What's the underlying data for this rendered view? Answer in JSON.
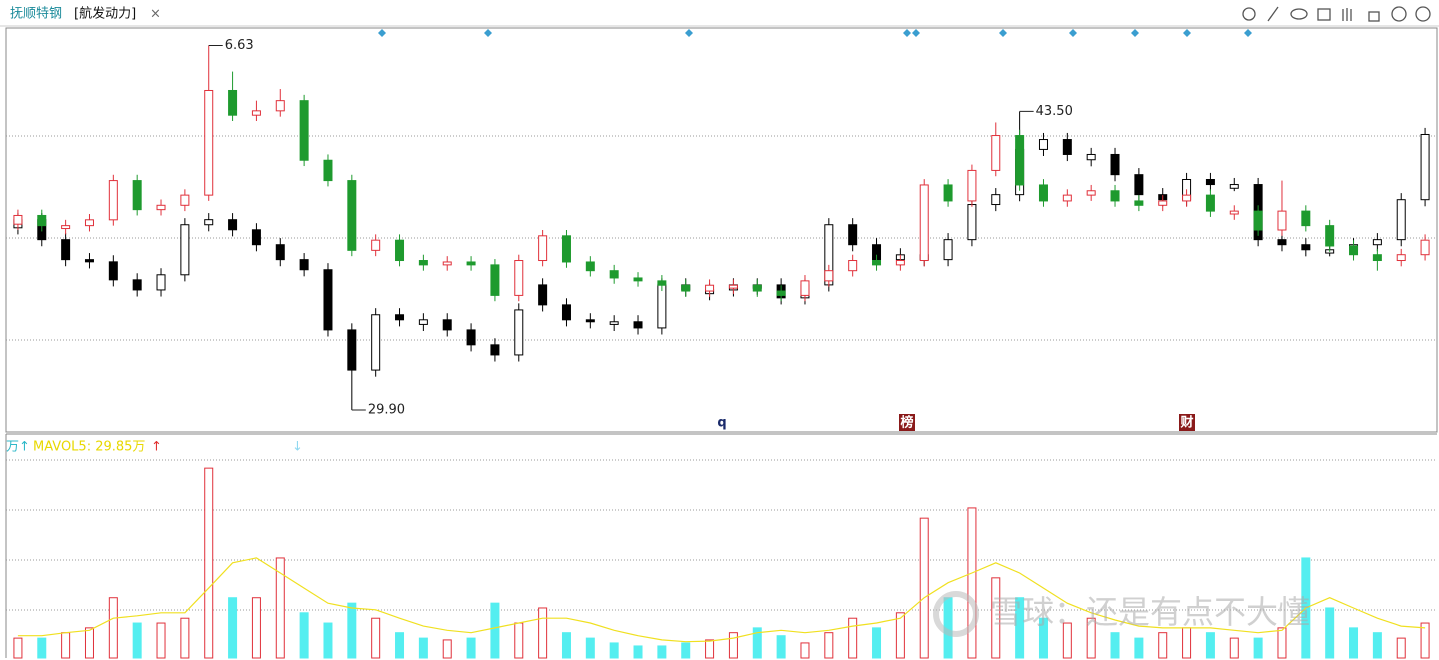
{
  "tab": {
    "stock": "抚顺特钢",
    "overlay": "[航发动力]",
    "close": "×"
  },
  "chart_data": {
    "type": "candlestick",
    "series": [
      {
        "name": "抚顺特钢",
        "up_color": "#e0303a",
        "down_color": "#1e9a2e",
        "hollow_up": true,
        "ylim": [
          3.97,
          6.75
        ],
        "max_label": "6.63",
        "ohlc": [
          [
            5.4,
            5.5,
            5.36,
            5.46
          ],
          [
            5.46,
            5.5,
            5.35,
            5.39
          ],
          [
            5.37,
            5.43,
            5.33,
            5.39
          ],
          [
            5.39,
            5.47,
            5.35,
            5.43
          ],
          [
            5.43,
            5.74,
            5.39,
            5.7
          ],
          [
            5.7,
            5.74,
            5.46,
            5.5
          ],
          [
            5.5,
            5.57,
            5.46,
            5.53
          ],
          [
            5.53,
            5.64,
            5.49,
            5.6
          ],
          [
            5.6,
            6.63,
            5.56,
            6.32
          ],
          [
            6.32,
            6.45,
            6.11,
            6.15
          ],
          [
            6.15,
            6.25,
            6.11,
            6.18
          ],
          [
            6.18,
            6.33,
            6.14,
            6.25
          ],
          [
            6.25,
            6.29,
            5.8,
            5.84
          ],
          [
            5.84,
            5.88,
            5.66,
            5.7
          ],
          [
            5.7,
            5.74,
            5.18,
            5.22
          ],
          [
            5.22,
            5.33,
            5.18,
            5.29
          ],
          [
            5.29,
            5.33,
            5.11,
            5.15
          ],
          [
            5.15,
            5.19,
            5.08,
            5.12
          ],
          [
            5.12,
            5.18,
            5.08,
            5.14
          ],
          [
            5.14,
            5.18,
            5.08,
            5.12
          ],
          [
            5.12,
            5.16,
            4.87,
            4.91
          ],
          [
            4.91,
            5.19,
            4.87,
            5.15
          ],
          [
            5.15,
            5.36,
            5.11,
            5.32
          ],
          [
            5.32,
            5.36,
            5.1,
            5.14
          ],
          [
            5.14,
            5.18,
            5.04,
            5.08
          ],
          [
            5.08,
            5.12,
            4.99,
            5.03
          ],
          [
            5.03,
            5.07,
            4.97,
            5.01
          ],
          [
            5.01,
            5.05,
            4.94,
            4.98
          ],
          [
            4.98,
            5.02,
            4.9,
            4.94
          ],
          [
            4.94,
            5.02,
            4.9,
            4.98
          ],
          [
            4.96,
            5.02,
            4.92,
            4.98
          ],
          [
            4.98,
            5.02,
            4.9,
            4.94
          ],
          [
            4.94,
            4.98,
            4.87,
            4.91
          ],
          [
            4.91,
            5.05,
            4.87,
            5.01
          ],
          [
            5.01,
            5.12,
            4.97,
            5.08
          ],
          [
            5.08,
            5.19,
            5.04,
            5.15
          ],
          [
            5.15,
            5.19,
            5.08,
            5.12
          ],
          [
            5.12,
            5.19,
            5.08,
            5.15
          ],
          [
            5.15,
            5.71,
            5.11,
            5.67
          ],
          [
            5.67,
            5.71,
            5.52,
            5.56
          ],
          [
            5.56,
            5.81,
            5.52,
            5.77
          ],
          [
            5.77,
            6.1,
            5.73,
            6.01
          ],
          [
            6.01,
            6.05,
            5.63,
            5.67
          ],
          [
            5.67,
            5.71,
            5.52,
            5.56
          ],
          [
            5.56,
            5.64,
            5.52,
            5.6
          ],
          [
            5.6,
            5.67,
            5.56,
            5.63
          ],
          [
            5.63,
            5.67,
            5.52,
            5.56
          ],
          [
            5.56,
            5.6,
            5.49,
            5.53
          ],
          [
            5.53,
            5.6,
            5.49,
            5.56
          ],
          [
            5.56,
            5.64,
            5.52,
            5.6
          ],
          [
            5.6,
            5.64,
            5.45,
            5.49
          ],
          [
            5.47,
            5.53,
            5.43,
            5.49
          ],
          [
            5.49,
            5.53,
            5.32,
            5.36
          ],
          [
            5.36,
            5.7,
            5.32,
            5.49
          ],
          [
            5.49,
            5.53,
            5.35,
            5.39
          ],
          [
            5.39,
            5.43,
            5.21,
            5.25
          ],
          [
            5.25,
            5.29,
            5.15,
            5.19
          ],
          [
            5.19,
            5.23,
            5.08,
            5.15
          ],
          [
            5.15,
            5.23,
            5.11,
            5.19
          ],
          [
            5.19,
            5.33,
            5.15,
            5.29
          ]
        ]
      },
      {
        "name": "航发动力",
        "up_color": "#000000",
        "down_color": "#000000",
        "hollow_up": true,
        "ylim": [
          28.9,
          47.3
        ],
        "max_label": "43.50",
        "min_label": "29.90",
        "ohlc": [
          [
            38.2,
            38.87,
            37.9,
            38.57
          ],
          [
            38.57,
            38.87,
            37.36,
            37.66
          ],
          [
            37.66,
            37.96,
            36.45,
            36.75
          ],
          [
            36.75,
            37.05,
            36.35,
            36.65
          ],
          [
            36.65,
            36.95,
            35.53,
            35.83
          ],
          [
            35.83,
            36.13,
            35.07,
            35.37
          ],
          [
            35.37,
            36.36,
            35.07,
            36.06
          ],
          [
            36.06,
            38.64,
            35.76,
            38.34
          ],
          [
            38.34,
            38.87,
            38.04,
            38.57
          ],
          [
            38.57,
            38.87,
            37.81,
            38.11
          ],
          [
            38.11,
            38.41,
            37.13,
            37.43
          ],
          [
            37.43,
            37.73,
            36.45,
            36.75
          ],
          [
            36.75,
            37.05,
            35.99,
            36.29
          ],
          [
            36.29,
            36.59,
            33.25,
            33.55
          ],
          [
            33.55,
            33.85,
            29.9,
            31.72
          ],
          [
            31.72,
            34.54,
            31.42,
            34.24
          ],
          [
            34.24,
            34.54,
            33.71,
            34.01
          ],
          [
            33.8,
            34.31,
            33.5,
            34.01
          ],
          [
            34.01,
            34.31,
            33.25,
            33.55
          ],
          [
            33.55,
            33.85,
            32.57,
            32.87
          ],
          [
            32.87,
            33.17,
            32.11,
            32.41
          ],
          [
            32.41,
            34.76,
            32.11,
            34.46
          ],
          [
            35.6,
            35.9,
            34.39,
            34.69
          ],
          [
            34.69,
            34.99,
            33.71,
            34.01
          ],
          [
            34.01,
            34.31,
            33.62,
            33.92
          ],
          [
            33.8,
            34.22,
            33.5,
            33.92
          ],
          [
            33.92,
            34.22,
            33.34,
            33.64
          ],
          [
            33.64,
            35.9,
            33.34,
            35.6
          ],
          [
            35.6,
            35.9,
            35.07,
            35.37
          ],
          [
            35.2,
            35.67,
            34.9,
            35.37
          ],
          [
            35.37,
            35.9,
            35.07,
            35.6
          ],
          [
            35.45,
            35.9,
            35.15,
            35.6
          ],
          [
            35.6,
            35.9,
            34.71,
            35.01
          ],
          [
            35.01,
            35.9,
            34.71,
            35.6
          ],
          [
            35.6,
            38.64,
            35.3,
            38.34
          ],
          [
            38.34,
            38.64,
            37.13,
            37.43
          ],
          [
            37.43,
            37.73,
            36.45,
            36.75
          ],
          [
            36.75,
            37.27,
            36.45,
            36.97
          ],
          [
            36.97,
            37.27,
            36.45,
            36.75
          ],
          [
            36.75,
            37.96,
            36.45,
            37.66
          ],
          [
            37.66,
            39.56,
            37.36,
            39.26
          ],
          [
            39.26,
            40.01,
            38.96,
            39.71
          ],
          [
            39.71,
            43.5,
            39.41,
            41.77
          ],
          [
            41.77,
            42.52,
            41.47,
            42.22
          ],
          [
            42.22,
            42.52,
            41.24,
            41.54
          ],
          [
            41.3,
            41.84,
            41.0,
            41.54
          ],
          [
            41.54,
            41.84,
            40.32,
            40.62
          ],
          [
            40.62,
            40.92,
            39.41,
            39.71
          ],
          [
            39.71,
            40.01,
            39.18,
            39.48
          ],
          [
            39.48,
            40.7,
            39.18,
            40.4
          ],
          [
            40.4,
            40.7,
            39.87,
            40.17
          ],
          [
            40.0,
            40.47,
            39.87,
            40.17
          ],
          [
            40.17,
            40.47,
            37.36,
            37.66
          ],
          [
            37.66,
            37.96,
            37.13,
            37.43
          ],
          [
            37.43,
            37.73,
            36.9,
            37.2
          ],
          [
            37.05,
            37.5,
            36.9,
            37.2
          ],
          [
            37.2,
            37.73,
            36.9,
            37.43
          ],
          [
            37.43,
            37.96,
            37.13,
            37.66
          ],
          [
            37.66,
            39.78,
            37.36,
            39.48
          ],
          [
            39.48,
            42.75,
            39.18,
            42.45
          ]
        ]
      }
    ],
    "markers": [
      "q",
      "榜",
      "财"
    ],
    "volume": {
      "unit_label": "万↑",
      "ma_label": "MAVOL5: 29.85万",
      "ma_arrow": "↑",
      "down_arrow": "↓",
      "ylim": [
        0,
        365
      ],
      "up_color": "#e0303a",
      "down_color": "#54eef0",
      "ma_color": "#f0e020",
      "values": [
        33,
        33,
        42,
        50,
        100,
        58,
        58,
        66,
        315,
        100,
        100,
        166,
        75,
        58,
        91,
        66,
        42,
        33,
        30,
        33,
        91,
        58,
        83,
        42,
        33,
        25,
        20,
        20,
        25,
        30,
        42,
        50,
        37,
        25,
        42,
        66,
        50,
        75,
        232,
        100,
        249,
        133,
        100,
        66,
        58,
        66,
        42,
        33,
        42,
        50,
        42,
        33,
        33,
        50,
        166,
        83,
        50,
        42,
        33,
        58
      ],
      "ma_values": [
        37,
        37,
        42,
        46,
        66,
        70,
        75,
        75,
        116,
        158,
        166,
        141,
        116,
        91,
        83,
        80,
        66,
        53,
        46,
        42,
        50,
        58,
        66,
        66,
        58,
        46,
        37,
        30,
        27,
        28,
        33,
        42,
        46,
        42,
        46,
        53,
        58,
        66,
        100,
        125,
        141,
        158,
        141,
        116,
        91,
        75,
        63,
        53,
        50,
        50,
        50,
        46,
        42,
        46,
        83,
        100,
        83,
        66,
        53,
        50
      ]
    }
  },
  "watermark": "雪球：还是有点不大懂"
}
